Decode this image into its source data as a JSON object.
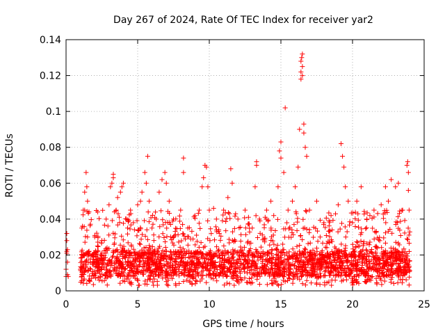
{
  "chart_data": {
    "type": "scatter",
    "title": "Day 267 of 2024, Rate Of TEC Index for receiver yar2",
    "xlabel": "GPS time / hours",
    "ylabel": "ROTI / TECUs",
    "xlim": [
      0,
      25
    ],
    "ylim": [
      0,
      0.14
    ],
    "xticks": [
      0,
      5,
      10,
      15,
      20,
      25
    ],
    "yticks": [
      0,
      0.02,
      0.04,
      0.06,
      0.08,
      0.1,
      0.12,
      0.14
    ],
    "xtick_labels": [
      "0",
      "5",
      "10",
      "15",
      "20",
      "25"
    ],
    "ytick_labels": [
      "0",
      "0.02",
      "0.04",
      "0.06",
      "0.08",
      "0.1",
      "0.12",
      "0.14"
    ],
    "grid": true,
    "marker": "+",
    "color": "#ff0000",
    "series": [
      {
        "name": "ROTI",
        "points": [
          [
            0.0,
            0.008
          ],
          [
            0.0,
            0.012
          ],
          [
            0.05,
            0.021
          ],
          [
            0.05,
            0.022
          ],
          [
            0.05,
            0.028
          ],
          [
            0.05,
            0.032
          ],
          [
            0.1,
            0.009
          ],
          [
            0.1,
            0.016
          ],
          [
            0.1,
            0.023
          ],
          [
            0.15,
            0.008
          ],
          [
            1.0,
            0.012
          ],
          [
            1.1,
            0.02
          ],
          [
            1.1,
            0.035
          ],
          [
            1.2,
            0.045
          ],
          [
            1.3,
            0.045
          ],
          [
            1.3,
            0.055
          ],
          [
            1.4,
            0.066
          ],
          [
            1.45,
            0.058
          ],
          [
            1.5,
            0.05
          ],
          [
            1.6,
            0.044
          ],
          [
            1.5,
            0.03
          ],
          [
            2.0,
            0.03
          ],
          [
            2.2,
            0.025
          ],
          [
            2.5,
            0.028
          ],
          [
            2.8,
            0.04
          ],
          [
            3.0,
            0.048
          ],
          [
            3.1,
            0.058
          ],
          [
            3.2,
            0.06
          ],
          [
            3.3,
            0.063
          ],
          [
            3.3,
            0.065
          ],
          [
            3.5,
            0.045
          ],
          [
            3.6,
            0.052
          ],
          [
            3.8,
            0.055
          ],
          [
            3.9,
            0.058
          ],
          [
            4.0,
            0.06
          ],
          [
            4.2,
            0.04
          ],
          [
            4.5,
            0.045
          ],
          [
            4.7,
            0.038
          ],
          [
            5.0,
            0.048
          ],
          [
            5.2,
            0.05
          ],
          [
            5.3,
            0.055
          ],
          [
            5.5,
            0.066
          ],
          [
            5.6,
            0.06
          ],
          [
            5.7,
            0.075
          ],
          [
            5.8,
            0.05
          ],
          [
            6.0,
            0.035
          ],
          [
            6.3,
            0.04
          ],
          [
            6.5,
            0.055
          ],
          [
            6.7,
            0.062
          ],
          [
            6.9,
            0.066
          ],
          [
            7.0,
            0.06
          ],
          [
            7.2,
            0.05
          ],
          [
            7.5,
            0.04
          ],
          [
            8.0,
            0.045
          ],
          [
            8.2,
            0.074
          ],
          [
            8.2,
            0.066
          ],
          [
            8.5,
            0.035
          ],
          [
            9.0,
            0.042
          ],
          [
            9.3,
            0.045
          ],
          [
            9.5,
            0.058
          ],
          [
            9.6,
            0.063
          ],
          [
            9.7,
            0.07
          ],
          [
            9.8,
            0.069
          ],
          [
            9.9,
            0.058
          ],
          [
            10.0,
            0.045
          ],
          [
            10.3,
            0.046
          ],
          [
            10.5,
            0.04
          ],
          [
            11.0,
            0.045
          ],
          [
            11.3,
            0.052
          ],
          [
            11.5,
            0.068
          ],
          [
            11.6,
            0.06
          ],
          [
            12.0,
            0.04
          ],
          [
            12.5,
            0.045
          ],
          [
            13.0,
            0.035
          ],
          [
            13.2,
            0.058
          ],
          [
            13.3,
            0.07
          ],
          [
            13.3,
            0.072
          ],
          [
            13.5,
            0.04
          ],
          [
            14.0,
            0.045
          ],
          [
            14.3,
            0.05
          ],
          [
            14.5,
            0.042
          ],
          [
            14.8,
            0.058
          ],
          [
            14.9,
            0.078
          ],
          [
            15.0,
            0.083
          ],
          [
            15.0,
            0.074
          ],
          [
            15.2,
            0.066
          ],
          [
            15.3,
            0.102
          ],
          [
            15.5,
            0.045
          ],
          [
            15.8,
            0.05
          ],
          [
            16.0,
            0.058
          ],
          [
            16.2,
            0.069
          ],
          [
            16.3,
            0.09
          ],
          [
            16.4,
            0.118
          ],
          [
            16.4,
            0.122
          ],
          [
            16.4,
            0.128
          ],
          [
            16.45,
            0.13
          ],
          [
            16.5,
            0.125
          ],
          [
            16.5,
            0.132
          ],
          [
            16.5,
            0.12
          ],
          [
            16.6,
            0.093
          ],
          [
            16.6,
            0.088
          ],
          [
            16.7,
            0.08
          ],
          [
            16.8,
            0.075
          ],
          [
            17.0,
            0.045
          ],
          [
            17.5,
            0.05
          ],
          [
            18.0,
            0.038
          ],
          [
            18.5,
            0.042
          ],
          [
            19.0,
            0.048
          ],
          [
            19.2,
            0.082
          ],
          [
            19.3,
            0.075
          ],
          [
            19.4,
            0.069
          ],
          [
            19.5,
            0.058
          ],
          [
            19.7,
            0.05
          ],
          [
            20.0,
            0.038
          ],
          [
            20.3,
            0.05
          ],
          [
            20.6,
            0.058
          ],
          [
            21.0,
            0.04
          ],
          [
            21.5,
            0.045
          ],
          [
            22.0,
            0.048
          ],
          [
            22.3,
            0.058
          ],
          [
            22.5,
            0.05
          ],
          [
            22.7,
            0.062
          ],
          [
            23.0,
            0.058
          ],
          [
            23.2,
            0.06
          ],
          [
            23.5,
            0.045
          ],
          [
            23.8,
            0.07
          ],
          [
            23.85,
            0.072
          ],
          [
            23.9,
            0.066
          ],
          [
            23.9,
            0.056
          ],
          [
            23.95,
            0.045
          ]
        ],
        "dense_band": {
          "x_range": [
            1.0,
            24.0
          ],
          "y_floor": 0.003,
          "y_core": [
            0.008,
            0.022
          ],
          "y_upper_envelope": 0.045
        }
      }
    ]
  }
}
